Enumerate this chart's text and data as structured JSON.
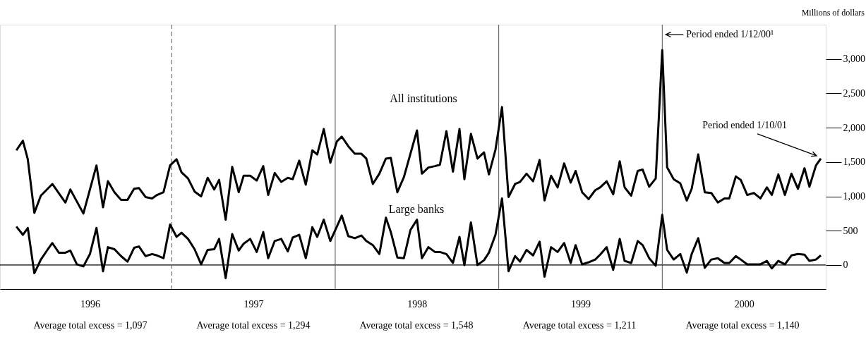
{
  "chart_data": {
    "type": "line",
    "xlim": [
      1995.95,
      2001.0
    ],
    "ylim": [
      -350,
      3500
    ],
    "xticks": [
      {
        "value": 1996.5,
        "label": "1996"
      },
      {
        "value": 1997.5,
        "label": "1997"
      },
      {
        "value": 1998.5,
        "label": "1998"
      },
      {
        "value": 1999.5,
        "label": "1999"
      },
      {
        "value": 2000.5,
        "label": "2000"
      }
    ],
    "yticks": [
      0,
      {
        "value": 500,
        "label": "500"
      },
      {
        "value": 1000,
        "label": "1,000"
      },
      {
        "value": 1500,
        "label": "1,500"
      },
      {
        "value": 2000,
        "label": "2,000"
      },
      {
        "value": 2500,
        "label": "2,500"
      },
      {
        "value": 3000,
        "label": "3,000"
      }
    ],
    "grid": false,
    "marker": "none",
    "line_style": "solid",
    "series": [
      {
        "name": "All institutions",
        "color": "#000000",
        "x": [
          1996.05,
          1996.09,
          1996.12,
          1996.16,
          1996.2,
          1996.27,
          1996.35,
          1996.38,
          1996.46,
          1996.54,
          1996.58,
          1996.61,
          1996.65,
          1996.69,
          1996.73,
          1996.77,
          1996.8,
          1996.84,
          1996.88,
          1996.91,
          1996.95,
          1996.99,
          1997.03,
          1997.06,
          1997.1,
          1997.14,
          1997.18,
          1997.22,
          1997.26,
          1997.29,
          1997.33,
          1997.37,
          1997.41,
          1997.44,
          1997.48,
          1997.52,
          1997.56,
          1997.59,
          1997.63,
          1997.67,
          1997.71,
          1997.74,
          1997.78,
          1997.82,
          1997.86,
          1997.89,
          1997.93,
          1997.97,
          1998.01,
          1998.04,
          1998.08,
          1998.12,
          1998.16,
          1998.19,
          1998.23,
          1998.27,
          1998.31,
          1998.34,
          1998.38,
          1998.42,
          1998.46,
          1998.5,
          1998.53,
          1998.57,
          1998.61,
          1998.64,
          1998.68,
          1998.72,
          1998.76,
          1998.79,
          1998.83,
          1998.87,
          1998.91,
          1998.94,
          1998.98,
          1999.02,
          1999.06,
          1999.1,
          1999.13,
          1999.17,
          1999.21,
          1999.25,
          1999.28,
          1999.32,
          1999.36,
          1999.4,
          1999.44,
          1999.47,
          1999.51,
          1999.55,
          1999.59,
          1999.62,
          1999.66,
          1999.7,
          1999.74,
          1999.77,
          1999.81,
          1999.85,
          1999.88,
          1999.92,
          1999.96,
          2000.0,
          2000.03,
          2000.07,
          2000.11,
          2000.15,
          2000.18,
          2000.22,
          2000.26,
          2000.3,
          2000.34,
          2000.38,
          2000.41,
          2000.45,
          2000.48,
          2000.52,
          2000.56,
          2000.6,
          2000.64,
          2000.67,
          2000.71,
          2000.75,
          2000.79,
          2000.83,
          2000.87,
          2000.9,
          2000.94,
          2000.97
        ],
        "values": [
          1670,
          1810,
          1540,
          760,
          1010,
          1180,
          910,
          1100,
          750,
          1450,
          840,
          1220,
          1060,
          950,
          950,
          1110,
          1120,
          990,
          970,
          1020,
          1060,
          1450,
          1540,
          1350,
          1260,
          1070,
          1000,
          1270,
          1100,
          1240,
          660,
          1430,
          1060,
          1300,
          1300,
          1230,
          1440,
          1020,
          1340,
          1210,
          1270,
          1250,
          1520,
          1170,
          1670,
          1610,
          1980,
          1490,
          1800,
          1870,
          1730,
          1620,
          1620,
          1550,
          1180,
          1330,
          1550,
          1560,
          1060,
          1280,
          1620,
          1960,
          1330,
          1420,
          1440,
          1460,
          1950,
          1360,
          1980,
          1250,
          1910,
          1550,
          1640,
          1320,
          1680,
          2300,
          990,
          1180,
          1210,
          1330,
          1220,
          1530,
          940,
          1300,
          1130,
          1480,
          1200,
          1370,
          1060,
          960,
          1090,
          1130,
          1220,
          1030,
          1510,
          1130,
          1010,
          1370,
          1390,
          1140,
          1260,
          3130,
          1420,
          1250,
          1190,
          940,
          1110,
          1610,
          1060,
          1050,
          910,
          970,
          970,
          1290,
          1240,
          1020,
          1050,
          970,
          1130,
          1020,
          1320,
          1020,
          1330,
          1110,
          1410,
          1140,
          1450,
          1550
        ]
      },
      {
        "name": "Large banks",
        "color": "#000000",
        "x": [
          1996.05,
          1996.09,
          1996.12,
          1996.16,
          1996.2,
          1996.24,
          1996.27,
          1996.31,
          1996.35,
          1996.38,
          1996.42,
          1996.46,
          1996.5,
          1996.54,
          1996.58,
          1996.61,
          1996.65,
          1996.69,
          1996.73,
          1996.77,
          1996.8,
          1996.84,
          1996.88,
          1996.91,
          1996.95,
          1996.99,
          1997.03,
          1997.06,
          1997.1,
          1997.14,
          1997.18,
          1997.22,
          1997.26,
          1997.29,
          1997.33,
          1997.37,
          1997.41,
          1997.44,
          1997.48,
          1997.52,
          1997.56,
          1997.59,
          1997.63,
          1997.67,
          1997.71,
          1997.74,
          1997.78,
          1997.82,
          1997.86,
          1997.89,
          1997.93,
          1997.97,
          1998.01,
          1998.04,
          1998.08,
          1998.12,
          1998.16,
          1998.19,
          1998.23,
          1998.27,
          1998.31,
          1998.34,
          1998.38,
          1998.42,
          1998.46,
          1998.5,
          1998.53,
          1998.57,
          1998.61,
          1998.64,
          1998.68,
          1998.72,
          1998.76,
          1998.79,
          1998.83,
          1998.87,
          1998.91,
          1998.94,
          1998.98,
          1999.02,
          1999.06,
          1999.1,
          1999.13,
          1999.17,
          1999.21,
          1999.25,
          1999.28,
          1999.32,
          1999.36,
          1999.4,
          1999.44,
          1999.47,
          1999.51,
          1999.55,
          1999.59,
          1999.62,
          1999.66,
          1999.7,
          1999.74,
          1999.77,
          1999.81,
          1999.85,
          1999.88,
          1999.92,
          1999.96,
          2000.0,
          2000.03,
          2000.07,
          2000.11,
          2000.15,
          2000.18,
          2000.22,
          2000.26,
          2000.3,
          2000.34,
          2000.38,
          2000.41,
          2000.45,
          2000.48,
          2000.52,
          2000.56,
          2000.6,
          2000.64,
          2000.67,
          2000.71,
          2000.75,
          2000.79,
          2000.83,
          2000.87,
          2000.9,
          2000.94,
          2000.97
        ],
        "values": [
          560,
          440,
          540,
          -120,
          80,
          220,
          320,
          180,
          180,
          210,
          10,
          -20,
          160,
          540,
          -90,
          260,
          230,
          130,
          50,
          250,
          270,
          130,
          160,
          140,
          100,
          590,
          410,
          470,
          380,
          230,
          10,
          220,
          230,
          380,
          -190,
          450,
          210,
          310,
          380,
          190,
          480,
          100,
          350,
          380,
          200,
          400,
          440,
          100,
          550,
          410,
          660,
          350,
          560,
          720,
          420,
          390,
          430,
          350,
          290,
          160,
          690,
          480,
          110,
          100,
          510,
          660,
          100,
          260,
          190,
          190,
          160,
          30,
          410,
          0,
          620,
          0,
          70,
          180,
          440,
          970,
          -90,
          130,
          50,
          220,
          140,
          340,
          -170,
          260,
          190,
          320,
          30,
          290,
          10,
          40,
          80,
          150,
          260,
          -70,
          380,
          60,
          30,
          350,
          290,
          100,
          -10,
          730,
          220,
          80,
          160,
          -110,
          160,
          390,
          -40,
          80,
          100,
          30,
          30,
          130,
          80,
          10,
          10,
          10,
          60,
          -50,
          60,
          10,
          140,
          160,
          150,
          60,
          80,
          140
        ]
      }
    ],
    "ref_lines": [
      {
        "axis": "y",
        "value": 0,
        "color": "#000000"
      },
      {
        "axis": "x",
        "value": 1997.0,
        "color": "#555555",
        "line_style": "dashed"
      },
      {
        "axis": "x",
        "value": 1998.0,
        "color": "#555555"
      },
      {
        "axis": "x",
        "value": 1999.0,
        "color": "#555555"
      },
      {
        "axis": "x",
        "value": 2000.0,
        "color": "#555555"
      }
    ],
    "annotations": [
      "Millions of dollars",
      {
        "text": "Period ended 1/12/00¹",
        "x": 2000.0,
        "y": 3130
      },
      {
        "text": "Period ended 1/10/01",
        "x": 2000.97,
        "y": 1550
      },
      "Average total excess = 1,097",
      "Average total excess = 1,294",
      "Average total excess = 1,548",
      "Average total excess = 1,211",
      "Average total excess = 1,140"
    ]
  }
}
